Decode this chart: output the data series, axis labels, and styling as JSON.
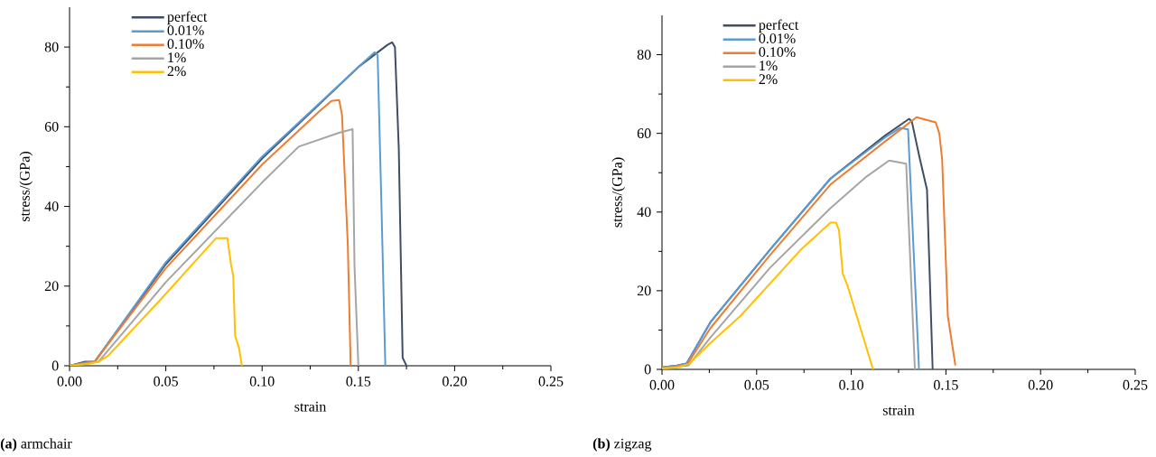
{
  "chart_data": [
    {
      "type": "line",
      "xlabel": "strain",
      "ylabel": "stress/(GPa)",
      "xlim": [
        0,
        0.25
      ],
      "ylim": [
        0,
        90
      ],
      "xticks": [
        {
          "value": 0,
          "label": "0.00"
        },
        {
          "value": 0.05,
          "label": "0.05"
        },
        {
          "value": 0.1,
          "label": "0.10"
        },
        {
          "value": 0.15,
          "label": "0.15"
        },
        {
          "value": 0.2,
          "label": "0.20"
        },
        {
          "value": 0.25,
          "label": "0.25"
        }
      ],
      "yticks": [
        0,
        20,
        40,
        60,
        80
      ],
      "legend": "top left",
      "annotations": [
        "**(a)** armchair"
      ],
      "series": [
        {
          "name": "perfect",
          "color": "#3d4e66",
          "x": [
            0,
            0.008,
            0.013,
            0.05,
            0.1,
            0.15,
            0.165,
            0.1675,
            0.169,
            0.171,
            0.173,
            0.175
          ],
          "values": [
            0,
            1,
            1,
            25.5,
            52,
            75,
            80.5,
            81.2,
            80,
            54.4,
            2,
            0
          ]
        },
        {
          "name": "0.01%",
          "color": "#5b9bd5",
          "x": [
            0,
            0.008,
            0.013,
            0.05,
            0.1,
            0.15,
            0.1585,
            0.16,
            0.162,
            0.164
          ],
          "values": [
            0,
            0.8,
            1,
            26,
            52.5,
            75,
            78.7,
            78,
            40,
            0
          ]
        },
        {
          "name": "0.10%",
          "color": "#ed7d31",
          "x": [
            0,
            0.008,
            0.013,
            0.05,
            0.1,
            0.13,
            0.136,
            0.14,
            0.1415,
            0.1445,
            0.146
          ],
          "values": [
            0,
            0.7,
            1,
            24.5,
            50.5,
            64,
            66.5,
            66.7,
            63,
            30.6,
            0
          ]
        },
        {
          "name": "1%",
          "color": "#a5a5a5",
          "x": [
            0,
            0.01,
            0.015,
            0.05,
            0.086,
            0.1,
            0.119,
            0.14,
            0.147,
            0.148,
            0.15
          ],
          "values": [
            0,
            0.6,
            1,
            21,
            39,
            46,
            55,
            58.5,
            59.4,
            25,
            0
          ]
        },
        {
          "name": "2%",
          "color": "#ffc000",
          "x": [
            0,
            0.01,
            0.015,
            0.02,
            0.048,
            0.076,
            0.082,
            0.084,
            0.085,
            0.086,
            0.088,
            0.0895
          ],
          "values": [
            0,
            0.5,
            1,
            2.5,
            17,
            32,
            32,
            25,
            22.7,
            7.5,
            4.5,
            0
          ]
        }
      ]
    },
    {
      "type": "line",
      "xlabel": "strain",
      "ylabel": "stress/(GPa)",
      "xlim": [
        0,
        0.25
      ],
      "ylim": [
        0,
        90
      ],
      "xticks": [
        {
          "value": 0,
          "label": "0.00"
        },
        {
          "value": 0.05,
          "label": "0.05"
        },
        {
          "value": 0.1,
          "label": "0.10"
        },
        {
          "value": 0.15,
          "label": "0.15"
        },
        {
          "value": 0.2,
          "label": "0.20"
        },
        {
          "value": 0.25,
          "label": "0.25"
        }
      ],
      "yticks": [
        0,
        20,
        40,
        60,
        80
      ],
      "legend": "top left",
      "annotations": [
        "**(b)** zigzag"
      ],
      "series": [
        {
          "name": "perfect",
          "color": "#3d4e66",
          "x": [
            0,
            0.008,
            0.013,
            0.0256,
            0.057,
            0.089,
            0.118,
            0.1306,
            0.132,
            0.136,
            0.14,
            0.143
          ],
          "values": [
            0.5,
            1,
            1.5,
            12,
            30.4,
            48.5,
            59.5,
            63.7,
            63,
            54,
            45.7,
            0
          ]
        },
        {
          "name": "0.01%",
          "color": "#5b9bd5",
          "x": [
            0,
            0.008,
            0.013,
            0.0256,
            0.057,
            0.089,
            0.118,
            0.1258,
            0.13,
            0.1358
          ],
          "values": [
            0.5,
            1,
            1.5,
            12,
            30.4,
            48.5,
            59,
            61.4,
            61,
            0
          ]
        },
        {
          "name": "0.10%",
          "color": "#ed7d31",
          "x": [
            0,
            0.008,
            0.013,
            0.0256,
            0.057,
            0.089,
            0.118,
            0.1345,
            0.1446,
            0.1465,
            0.148,
            0.151,
            0.155
          ],
          "values": [
            0.3,
            0.8,
            1,
            10.5,
            29,
            47,
            58,
            64.1,
            62.8,
            60,
            53.4,
            13.6,
            1
          ]
        },
        {
          "name": "1%",
          "color": "#a5a5a5",
          "x": [
            0,
            0.008,
            0.014,
            0.0256,
            0.057,
            0.089,
            0.108,
            0.12,
            0.129,
            0.1336
          ],
          "values": [
            0.3,
            0.6,
            1,
            8.1,
            25.8,
            41,
            49,
            53.1,
            52.3,
            0
          ]
        },
        {
          "name": "2%",
          "color": "#ffc000",
          "x": [
            0,
            0.008,
            0.0143,
            0.0256,
            0.0415,
            0.0733,
            0.089,
            0.092,
            0.0935,
            0.0955,
            0.098,
            0.1115
          ],
          "values": [
            0.2,
            0.5,
            1.4,
            6.7,
            13.6,
            30.4,
            37.3,
            37.3,
            35.4,
            24.3,
            21.3,
            0
          ]
        }
      ]
    }
  ]
}
